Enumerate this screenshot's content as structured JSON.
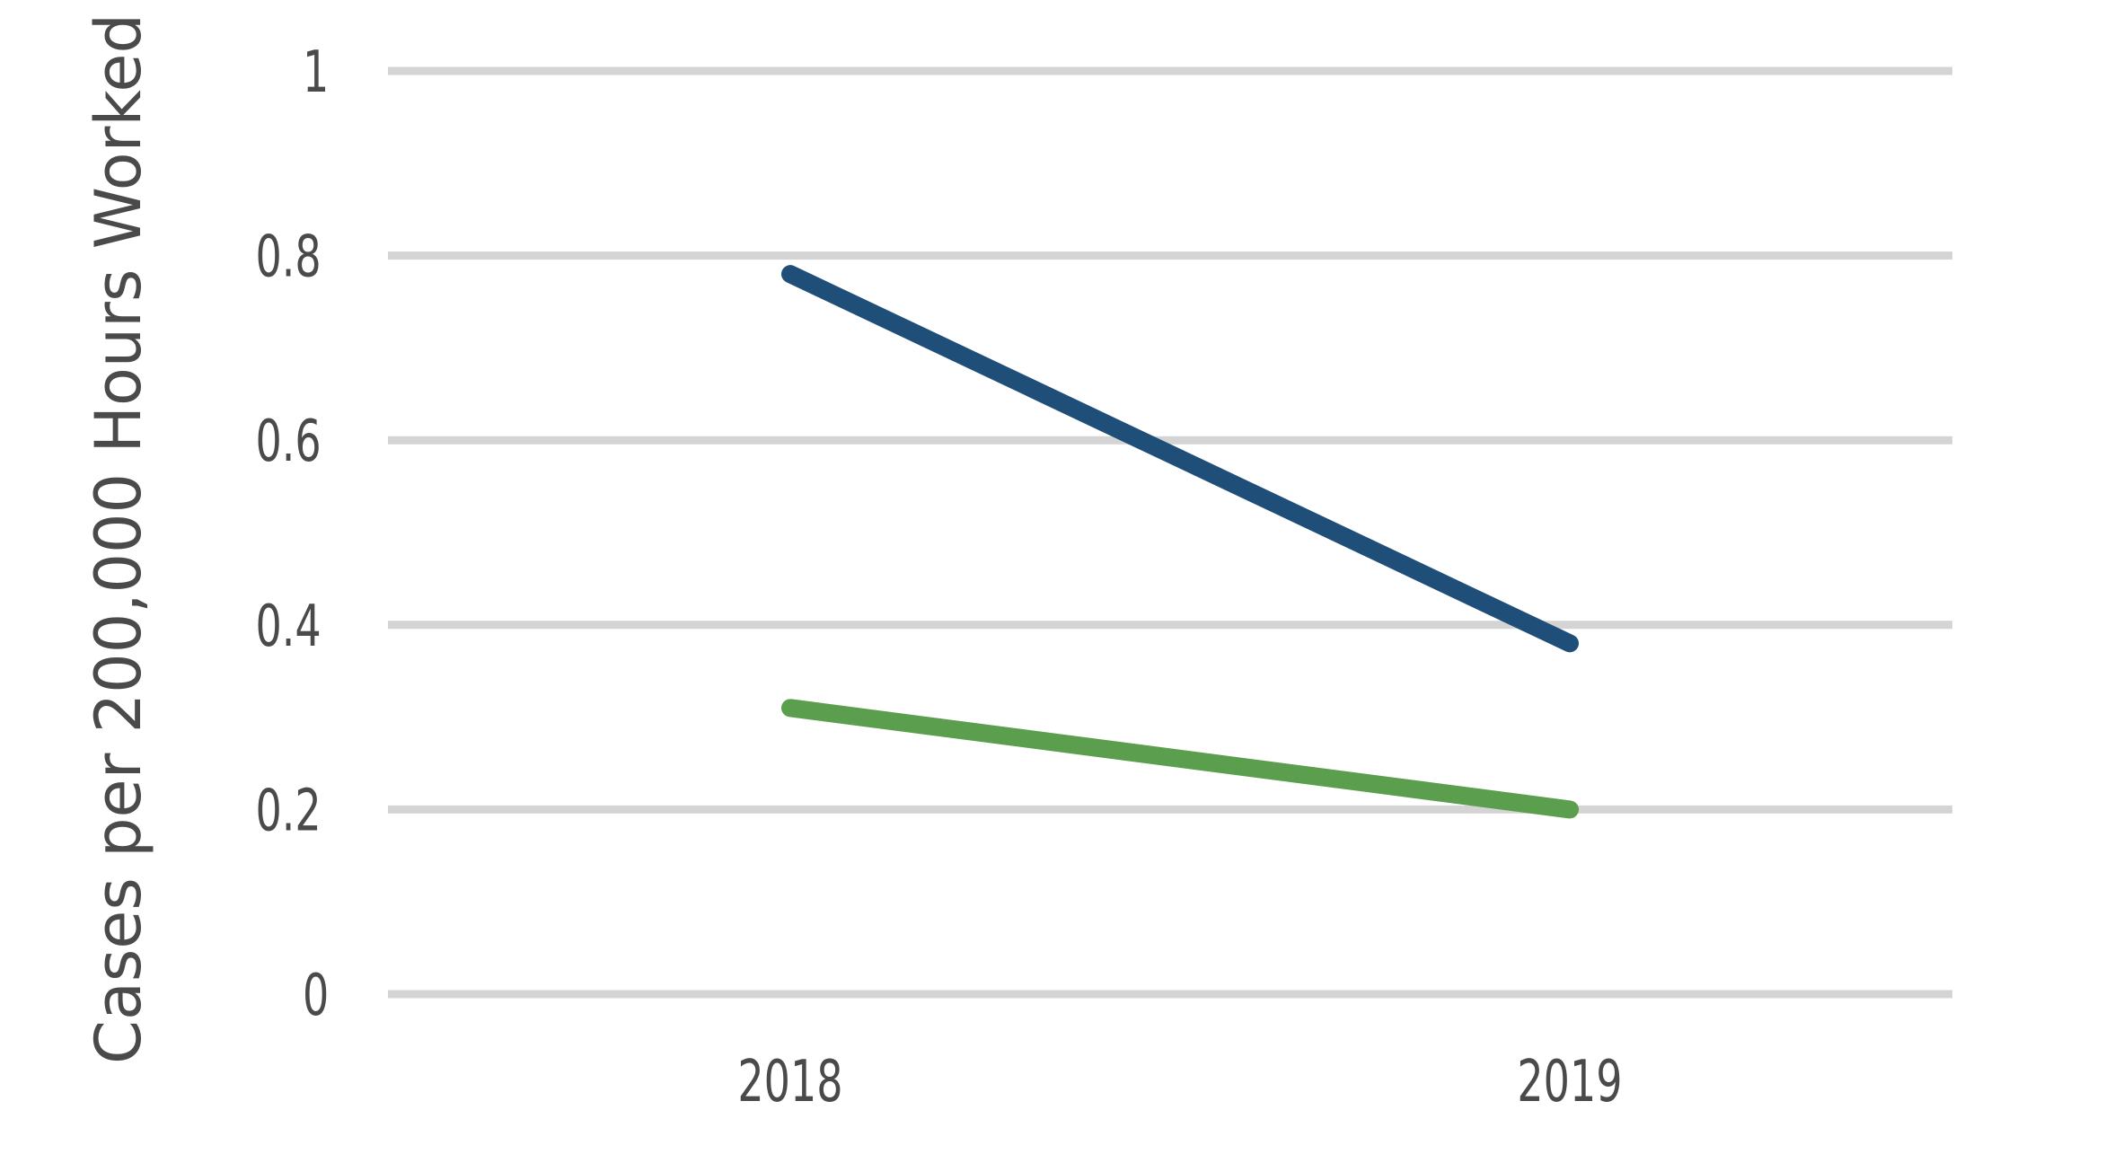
{
  "chart_data": {
    "type": "line",
    "title": "",
    "xlabel": "",
    "ylabel": "Cases per 200,000 Hours Worked",
    "categories": [
      "2018",
      "2019"
    ],
    "ylim": [
      0,
      1
    ],
    "yticks": [
      "0",
      "0.2",
      "0.4",
      "0.6",
      "0.8",
      "1"
    ],
    "grid": true,
    "legend": "none",
    "series": [
      {
        "values": [
          0.78,
          0.38
        ],
        "color": "#1f4e79"
      },
      {
        "values": [
          0.31,
          0.2
        ],
        "color": "#5b9e4d"
      }
    ]
  }
}
